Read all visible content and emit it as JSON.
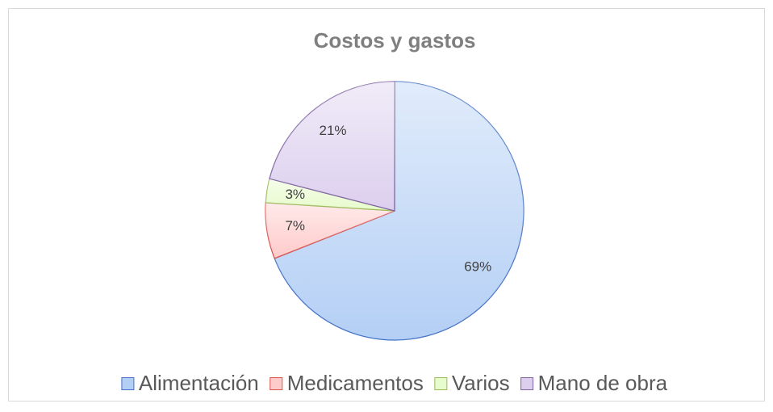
{
  "chart_data": {
    "type": "pie",
    "title": "Costos y gastos",
    "categories": [
      "Alimentación",
      "Medicamentos",
      "Varios",
      "Mano de obra"
    ],
    "values": [
      69,
      7,
      3,
      21
    ],
    "value_labels": [
      "69%",
      "7%",
      "3%",
      "21%"
    ],
    "colors": [
      "#b4cff5",
      "#ffcaca",
      "#e7fbcc",
      "#dccfee"
    ],
    "edge_colors": [
      "#4472c4",
      "#d9534f",
      "#9bbb59",
      "#8064a2"
    ],
    "legend": "bottom"
  }
}
